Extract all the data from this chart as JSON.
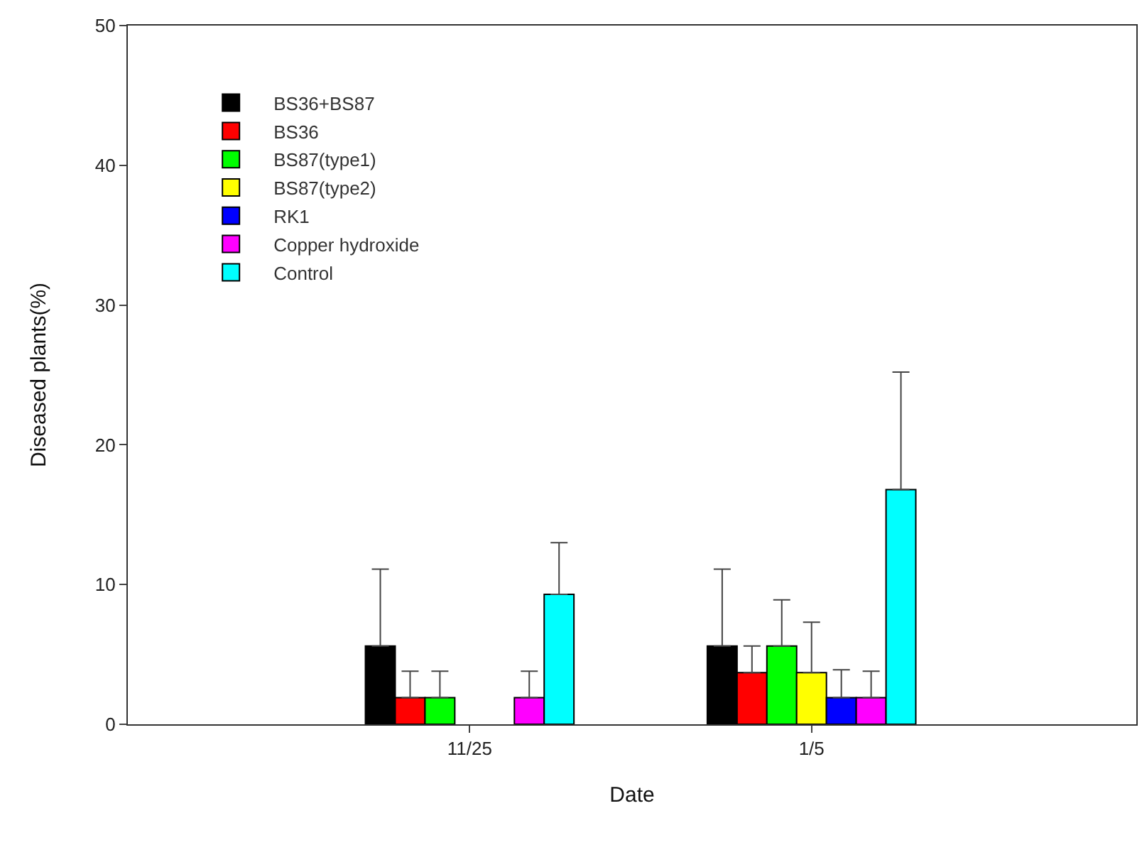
{
  "chart_data": {
    "type": "bar",
    "xlabel": "Date",
    "ylabel": "Diseased plants(%)",
    "categories": [
      "11/25",
      "1/5"
    ],
    "series": [
      {
        "name": "BS36+BS87",
        "color": "#000000",
        "values": [
          5.6,
          5.6
        ],
        "errors": [
          [
            5.6,
            11.1
          ],
          [
            5.6,
            11.1
          ]
        ]
      },
      {
        "name": "BS36",
        "color": "#ff0000",
        "values": [
          1.9,
          3.7
        ],
        "errors": [
          [
            1.9,
            3.8
          ],
          [
            3.7,
            5.6
          ]
        ]
      },
      {
        "name": "BS87(type1)",
        "color": "#00ff00",
        "values": [
          1.9,
          5.6
        ],
        "errors": [
          [
            1.9,
            3.8
          ],
          [
            5.6,
            8.9
          ]
        ]
      },
      {
        "name": "BS87(type2)",
        "color": "#ffff00",
        "values": [
          null,
          3.7
        ],
        "errors": [
          null,
          [
            3.7,
            7.3
          ]
        ]
      },
      {
        "name": "RK1",
        "color": "#0000ff",
        "values": [
          null,
          1.9
        ],
        "errors": [
          null,
          [
            1.9,
            3.9
          ]
        ]
      },
      {
        "name": "Copper hydroxide",
        "color": "#ff00ff",
        "values": [
          1.9,
          1.9
        ],
        "errors": [
          [
            1.9,
            3.8
          ],
          [
            1.9,
            3.8
          ]
        ]
      },
      {
        "name": "Control",
        "color": "#00ffff",
        "values": [
          9.3,
          16.8
        ],
        "errors": [
          [
            9.3,
            13
          ],
          [
            16.8,
            25.2
          ]
        ]
      }
    ],
    "ylim": [
      0,
      50
    ],
    "yticks": [
      0,
      10,
      20,
      30,
      40,
      50
    ],
    "grid": false,
    "legend": "top left"
  }
}
